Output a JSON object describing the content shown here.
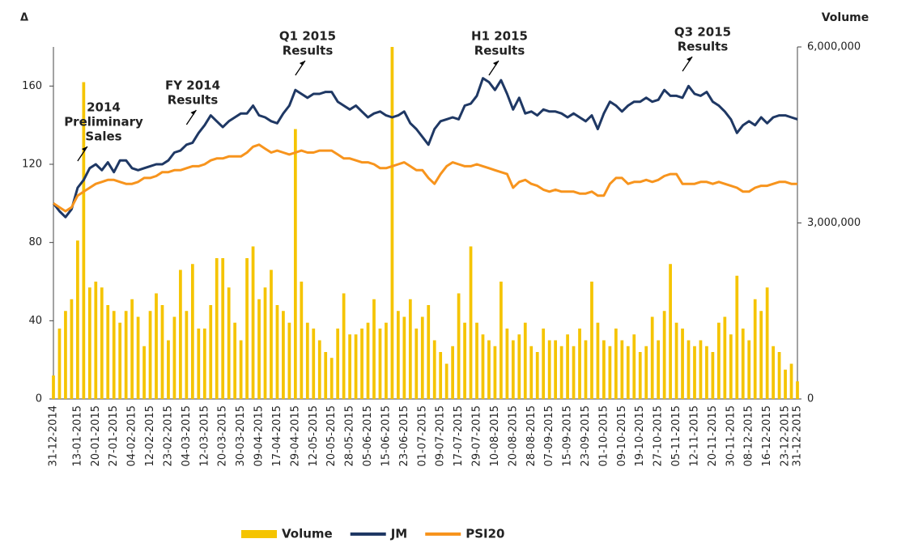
{
  "chart_data": {
    "type": "combo",
    "y_label": "Δ",
    "y2_label": "Volume",
    "categories": [
      "31-12-2014",
      null,
      null,
      null,
      "13-01-2015",
      null,
      null,
      "20-01-2015",
      null,
      null,
      "27-01-2015",
      null,
      null,
      "04-02-2015",
      null,
      null,
      "12-02-2015",
      null,
      null,
      "23-02-2015",
      null,
      null,
      "04-03-2015",
      null,
      null,
      "12-03-2015",
      null,
      null,
      "20-03-2015",
      null,
      null,
      "30-03-2015",
      null,
      null,
      "09-04-2015",
      null,
      null,
      "17-04-2015",
      null,
      null,
      "29-04-2015",
      null,
      null,
      "12-05-2015",
      null,
      null,
      "20-05-2015",
      null,
      null,
      "28-05-2015",
      null,
      null,
      "05-06-2015",
      null,
      null,
      "15-06-2015",
      null,
      null,
      "23-06-2015",
      null,
      null,
      "01-07-2015",
      null,
      null,
      "09-07-2015",
      null,
      null,
      "17-07-2015",
      null,
      null,
      "29-07-2015",
      null,
      null,
      "10-08-2015",
      null,
      null,
      "20-08-2015",
      null,
      null,
      "28-08-2015",
      null,
      null,
      "07-09-2015",
      null,
      null,
      "15-09-2015",
      null,
      null,
      "23-09-2015",
      null,
      null,
      "01-10-2015",
      null,
      null,
      "09-10-2015",
      null,
      null,
      "19-10-2015",
      null,
      null,
      "27-10-2015",
      null,
      null,
      "05-11-2015",
      null,
      null,
      "12-11-2015",
      null,
      null,
      "20-11-2015",
      null,
      null,
      "30-11-2015",
      null,
      null,
      "08-12-2015",
      null,
      null,
      "16-12-2015",
      null,
      null,
      "23-12-2015",
      null,
      "31-12-2015"
    ],
    "series": [
      {
        "name": "Volume",
        "type": "bar",
        "axis": "y2",
        "color": "#f5c400",
        "values": [
          400000,
          1200000,
          1500000,
          1700000,
          2700000,
          5400000,
          1900000,
          2000000,
          1900000,
          1600000,
          1500000,
          1300000,
          1500000,
          1700000,
          1400000,
          900000,
          1500000,
          1800000,
          1600000,
          1000000,
          1400000,
          2200000,
          1500000,
          2300000,
          1200000,
          1200000,
          1600000,
          2400000,
          2400000,
          1900000,
          1300000,
          1000000,
          2400000,
          2600000,
          1700000,
          1900000,
          2200000,
          1600000,
          1500000,
          1300000,
          4600000,
          2000000,
          1300000,
          1200000,
          1000000,
          800000,
          700000,
          1200000,
          1800000,
          1100000,
          1100000,
          1200000,
          1300000,
          1700000,
          1200000,
          1300000,
          6000000,
          1500000,
          1400000,
          1700000,
          1200000,
          1400000,
          1600000,
          1000000,
          800000,
          600000,
          900000,
          1800000,
          1300000,
          2600000,
          1300000,
          1100000,
          1000000,
          900000,
          2000000,
          1200000,
          1000000,
          1100000,
          1300000,
          900000,
          800000,
          1200000,
          1000000,
          1000000,
          900000,
          1100000,
          900000,
          1200000,
          1000000,
          2000000,
          1300000,
          1000000,
          900000,
          1200000,
          1000000,
          900000,
          1100000,
          800000,
          900000,
          1400000,
          1000000,
          1500000,
          2300000,
          1300000,
          1200000,
          1000000,
          900000,
          1000000,
          900000,
          800000,
          1300000,
          1400000,
          1100000,
          2100000,
          1200000,
          1000000,
          1700000,
          1500000,
          1900000,
          900000,
          800000,
          500000,
          600000,
          300000
        ]
      },
      {
        "name": "JM",
        "type": "line",
        "color": "#1f3864",
        "values": [
          100,
          96,
          93,
          97,
          108,
          112,
          118,
          120,
          117,
          121,
          116,
          122,
          122,
          118,
          117,
          118,
          119,
          120,
          120,
          122,
          126,
          127,
          130,
          131,
          136,
          140,
          145,
          142,
          139,
          142,
          144,
          146,
          146,
          150,
          145,
          144,
          142,
          141,
          146,
          150,
          158,
          156,
          154,
          156,
          156,
          157,
          157,
          152,
          150,
          148,
          150,
          147,
          144,
          146,
          147,
          145,
          144,
          145,
          147,
          141,
          138,
          134,
          130,
          138,
          142,
          143,
          144,
          143,
          150,
          151,
          155,
          164,
          162,
          158,
          163,
          156,
          148,
          154,
          146,
          147,
          145,
          148,
          147,
          147,
          146,
          144,
          146,
          144,
          142,
          145,
          138,
          146,
          152,
          150,
          147,
          150,
          152,
          152,
          154,
          152,
          153,
          158,
          155,
          155,
          154,
          160,
          156,
          155,
          157,
          152,
          150,
          147,
          143,
          136,
          140,
          142,
          140,
          144,
          141,
          144,
          145,
          145,
          144,
          143
        ]
      },
      {
        "name": "PSI20",
        "type": "line",
        "color": "#f7941d",
        "values": [
          100,
          98,
          96,
          98,
          104,
          106,
          108,
          110,
          111,
          112,
          112,
          111,
          110,
          110,
          111,
          113,
          113,
          114,
          116,
          116,
          117,
          117,
          118,
          119,
          119,
          120,
          122,
          123,
          123,
          124,
          124,
          124,
          126,
          129,
          130,
          128,
          126,
          127,
          126,
          125,
          126,
          127,
          126,
          126,
          127,
          127,
          127,
          125,
          123,
          123,
          122,
          121,
          121,
          120,
          118,
          118,
          119,
          120,
          121,
          119,
          117,
          117,
          113,
          110,
          115,
          119,
          121,
          120,
          119,
          119,
          120,
          119,
          118,
          117,
          116,
          115,
          108,
          111,
          112,
          110,
          109,
          107,
          106,
          107,
          106,
          106,
          106,
          105,
          105,
          106,
          104,
          104,
          110,
          113,
          113,
          110,
          111,
          111,
          112,
          111,
          112,
          114,
          115,
          115,
          110,
          110,
          110,
          111,
          111,
          110,
          111,
          110,
          109,
          108,
          106,
          106,
          108,
          109,
          109,
          110,
          111,
          111,
          110,
          110
        ]
      }
    ],
    "ylim": [
      0,
      180
    ],
    "yticks": [
      0,
      40,
      80,
      120,
      160
    ],
    "y2lim": [
      0,
      6000000
    ],
    "y2ticks": [
      0,
      {
        "value": 3000000,
        "label": "3,000,000"
      },
      {
        "value": 6000000,
        "label": "6,000,000"
      }
    ],
    "annotations": [
      {
        "text": [
          "2014",
          "Preliminary",
          "Sales"
        ],
        "x": 4
      },
      {
        "text": [
          "FY 2014",
          "Results"
        ],
        "x": 22
      },
      {
        "text": [
          "Q1 2015",
          "Results"
        ],
        "x": 40
      },
      {
        "text": [
          "H1 2015",
          "Results"
        ],
        "x": 72
      },
      {
        "text": [
          "Q3 2015",
          "Results"
        ],
        "x": 104
      }
    ],
    "legend": "bottom"
  }
}
